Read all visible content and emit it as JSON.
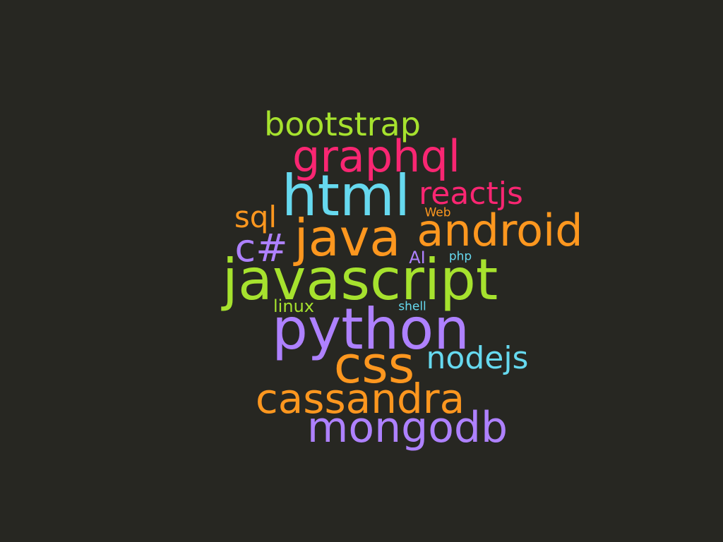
{
  "palette": {
    "background": "#272722",
    "green": "#a6e22e",
    "pink": "#f92672",
    "cyan": "#66d9ef",
    "orange": "#fd971f",
    "purple": "#ae81ff"
  },
  "words": [
    {
      "text": "bootstrap",
      "color": "green"
    },
    {
      "text": "graphql",
      "color": "pink"
    },
    {
      "text": "html",
      "color": "cyan"
    },
    {
      "text": "reactjs",
      "color": "pink"
    },
    {
      "text": "sql",
      "color": "orange"
    },
    {
      "text": "Web",
      "color": "orange"
    },
    {
      "text": "java",
      "color": "orange"
    },
    {
      "text": "android",
      "color": "orange"
    },
    {
      "text": "c#",
      "color": "purple"
    },
    {
      "text": "AI",
      "color": "purple"
    },
    {
      "text": "php",
      "color": "cyan"
    },
    {
      "text": "javascript",
      "color": "green"
    },
    {
      "text": "linux",
      "color": "green"
    },
    {
      "text": "shell",
      "color": "cyan"
    },
    {
      "text": "python",
      "color": "purple"
    },
    {
      "text": "css",
      "color": "orange"
    },
    {
      "text": "nodejs",
      "color": "cyan"
    },
    {
      "text": "cassandra",
      "color": "orange"
    },
    {
      "text": "mongodb",
      "color": "purple"
    }
  ]
}
